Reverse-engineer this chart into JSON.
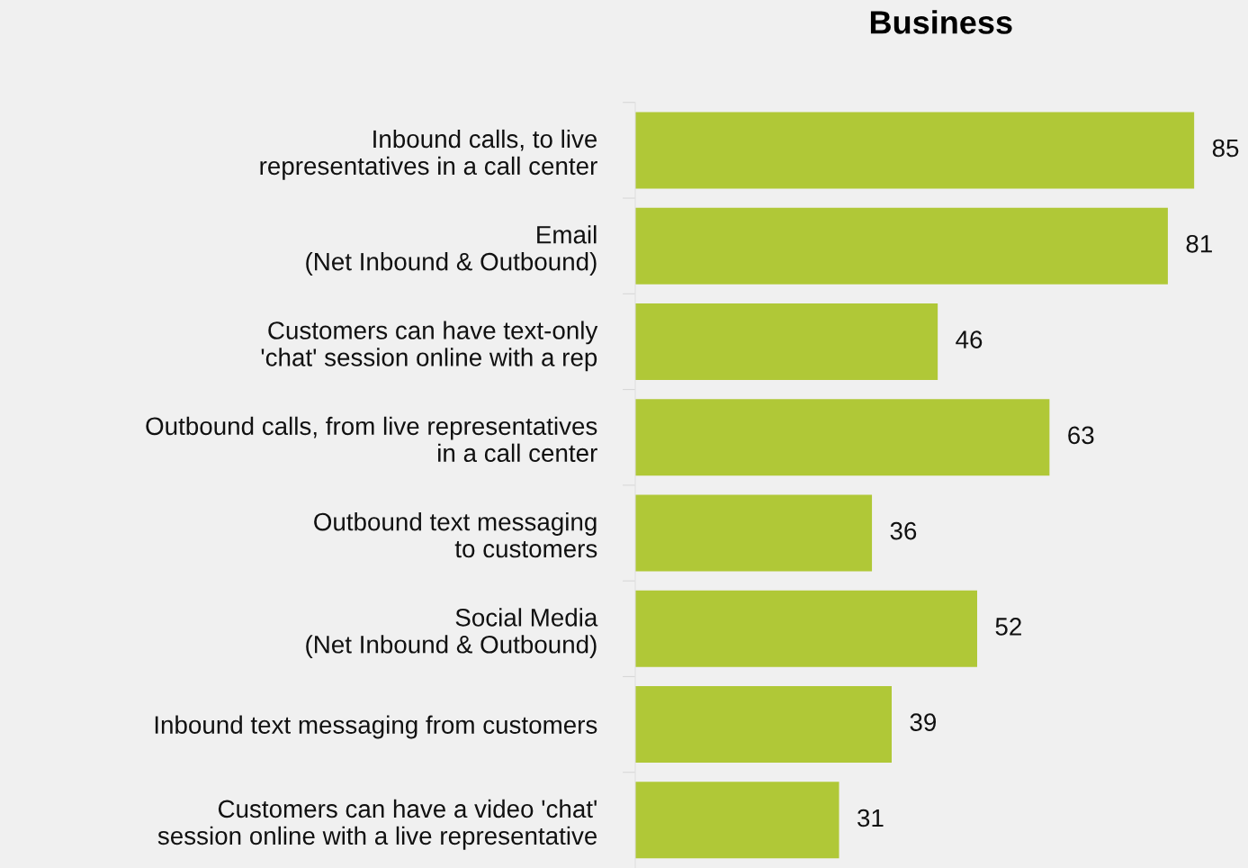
{
  "chart_data": {
    "type": "bar",
    "orientation": "horizontal",
    "title": "Business",
    "categories": [
      "Inbound calls, to live\nrepresentatives in a call center",
      "Email\n(Net Inbound & Outbound)",
      "Customers can have text-only\n'chat' session online with a rep",
      "Outbound calls, from live representatives\nin a call center",
      "Outbound text messaging\nto customers",
      "Social Media\n(Net Inbound & Outbound)",
      "Inbound text messaging from customers",
      "Customers can have a video 'chat'\nsession online with a live representative"
    ],
    "values": [
      85,
      81,
      46,
      63,
      36,
      52,
      39,
      31
    ],
    "color": "#b0c837",
    "xlim": [
      0,
      93
    ],
    "data_labels": true,
    "tick_labels": "y",
    "grid": false,
    "legend": false
  }
}
